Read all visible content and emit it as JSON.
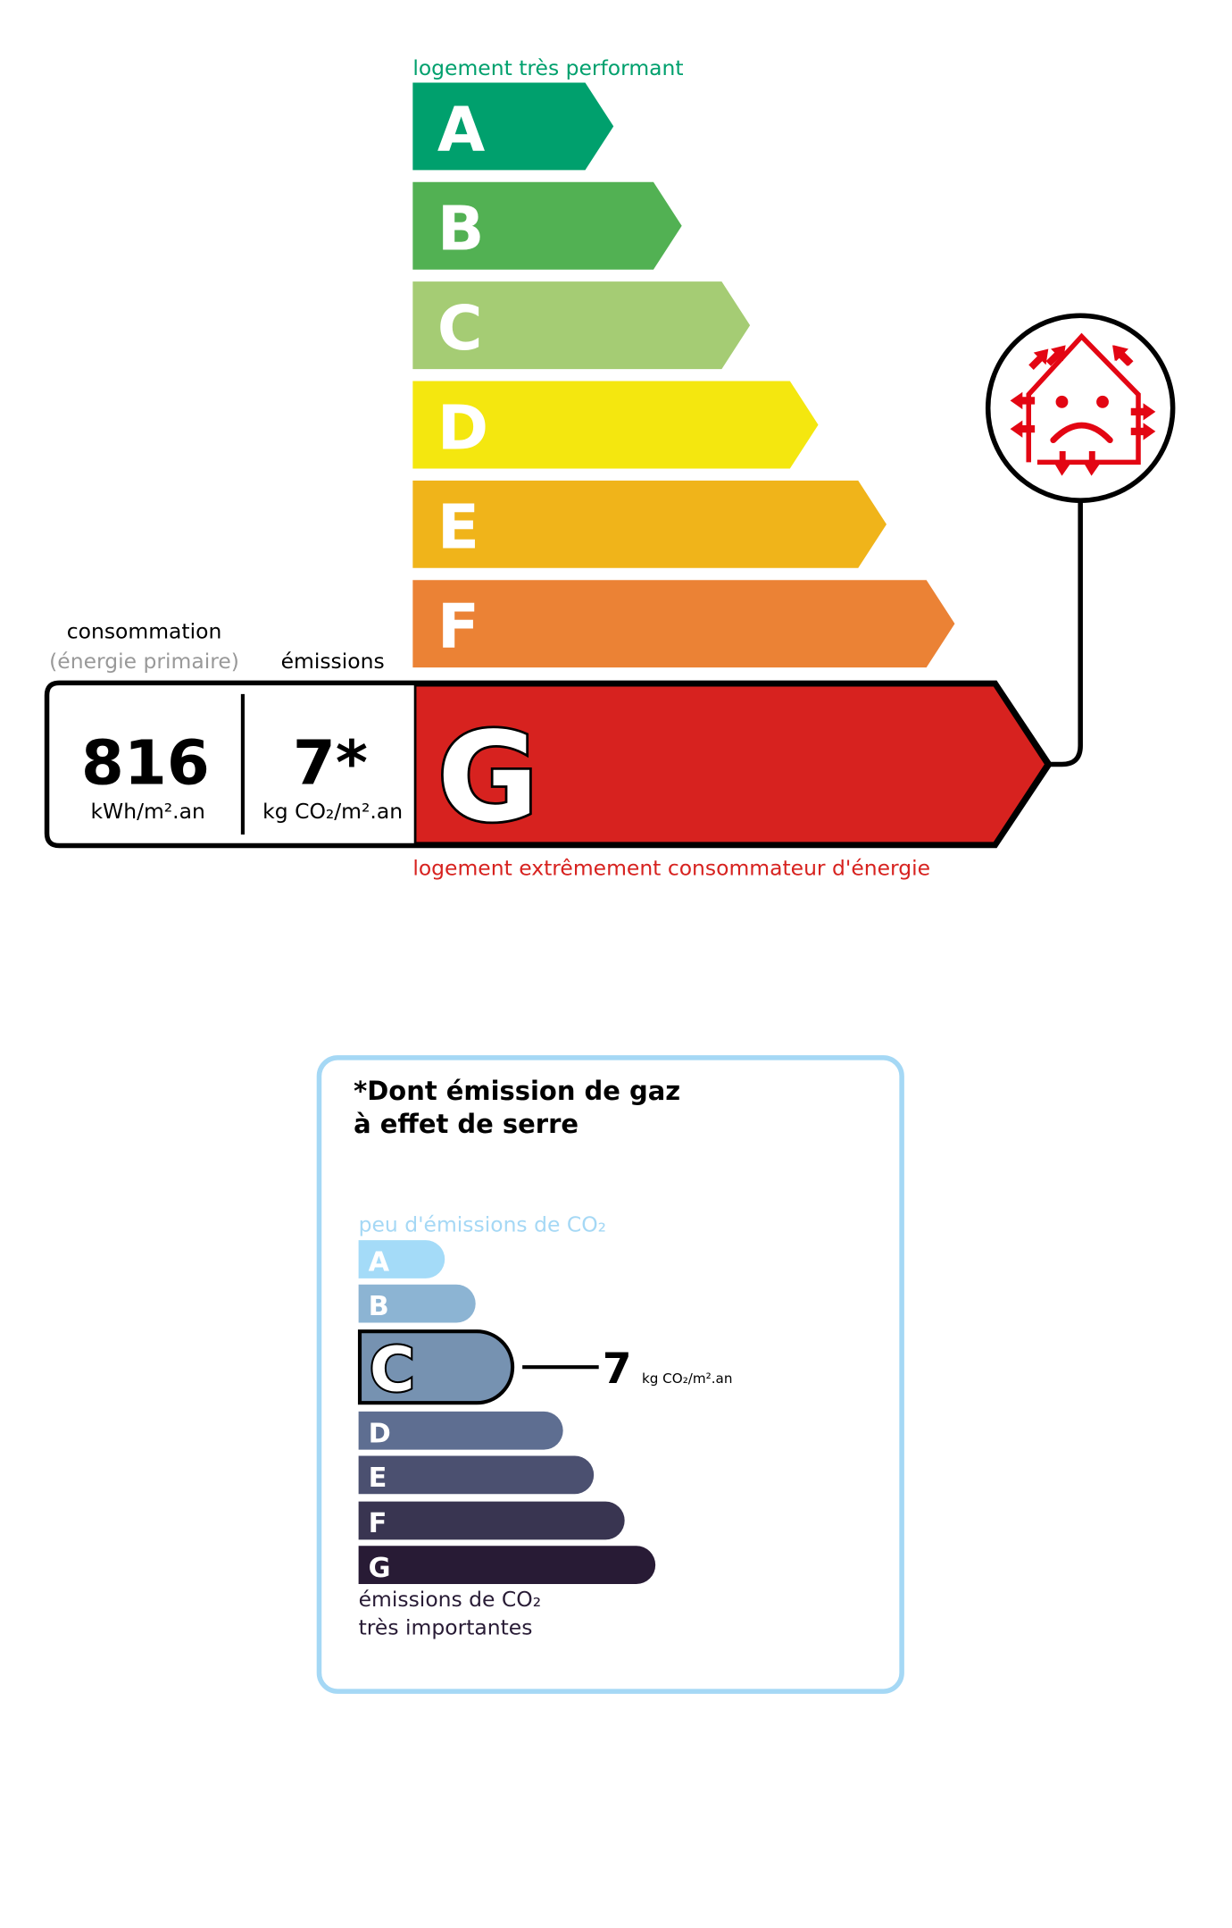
{
  "energy": {
    "top_label": "logement très performant",
    "bottom_label": "logement extrêmement consommateur d'énergie",
    "consumption_heading": "consommation",
    "consumption_subheading": "(énergie primaire)",
    "emissions_heading": "émissions",
    "consumption_value": "816",
    "consumption_unit": "kWh/m².an",
    "emissions_value": "7*",
    "emissions_unit": "kg CO₂/m².an",
    "current_class": "G",
    "classes": [
      {
        "letter": "A",
        "color": "#00a06d"
      },
      {
        "letter": "B",
        "color": "#52b153"
      },
      {
        "letter": "C",
        "color": "#a5cc74"
      },
      {
        "letter": "D",
        "color": "#f4e70f"
      },
      {
        "letter": "E",
        "color": "#f0b41a"
      },
      {
        "letter": "F",
        "color": "#eb8235"
      },
      {
        "letter": "G",
        "color": "#d7221f"
      }
    ],
    "icon": "poorly-insulated-house-sad-face-icon"
  },
  "ges": {
    "title_line1": "*Dont émission de gaz",
    "title_line2": "à effet de serre",
    "top_label": "peu d'émissions de CO₂",
    "bottom_label_line1": "émissions de CO₂",
    "bottom_label_line2": "très importantes",
    "current_class": "C",
    "value": "7",
    "unit": "kg CO₂/m².an",
    "border_color": "#a5d8f5",
    "classes": [
      {
        "letter": "A",
        "color": "#a4dbf8"
      },
      {
        "letter": "B",
        "color": "#8cb4d3"
      },
      {
        "letter": "C",
        "color": "#7692b1"
      },
      {
        "letter": "D",
        "color": "#5e6e91"
      },
      {
        "letter": "E",
        "color": "#4b5070"
      },
      {
        "letter": "F",
        "color": "#393551"
      },
      {
        "letter": "G",
        "color": "#281b35"
      }
    ]
  }
}
